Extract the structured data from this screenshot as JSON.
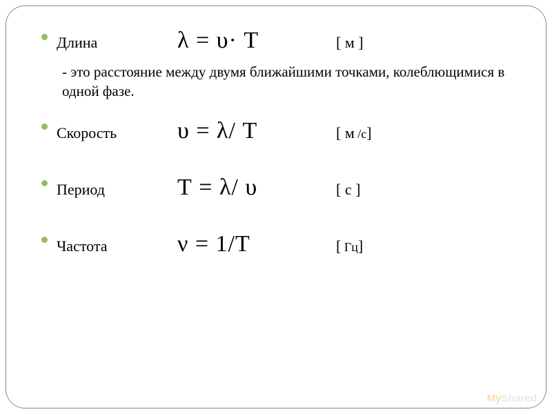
{
  "bullet_color": "#94bd5e",
  "text_color": "#000000",
  "background_color": "#ffffff",
  "frame_border_color": "#888888",
  "frame_border_radius": 28,
  "label_fontsize": 22,
  "formula_fontsize": 34,
  "unit_fontsize": 22,
  "description_fontsize": 21,
  "items": [
    {
      "label": "Длина",
      "formula": "λ = υ· Т",
      "unit": "[ м ]",
      "description": "- это расстояние между двумя ближайшими точками, колеблющимися в одной фазе."
    },
    {
      "label": "Скорость",
      "formula": "υ = λ/ Т",
      "unit": "[ м /с]"
    },
    {
      "label": "Период",
      "formula": "Т = λ/ υ",
      "unit": "[ с ]"
    },
    {
      "label": "Частота",
      "formula": "ν = 1/Т",
      "unit": "[ Гц]"
    }
  ],
  "watermark": {
    "prefix": "My",
    "suffix": "Shared"
  }
}
